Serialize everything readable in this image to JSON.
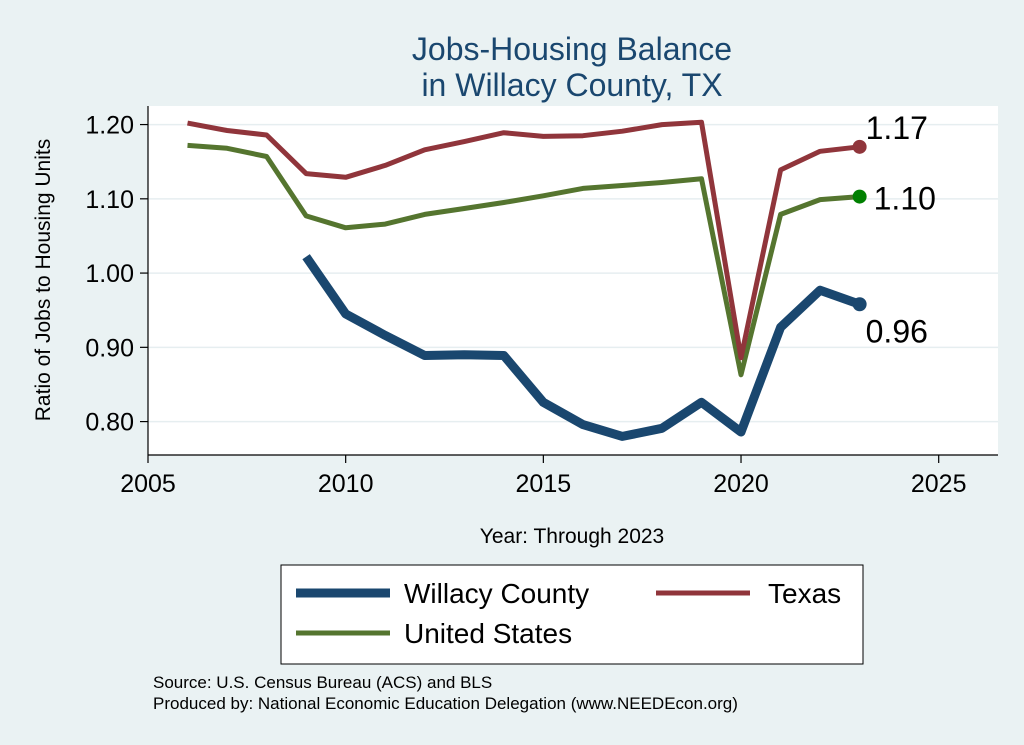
{
  "chart_data": {
    "type": "line",
    "title": [
      "Jobs-Housing Balance",
      "in Willacy County, TX"
    ],
    "xlabel": "Year: Through 2023",
    "ylabel": "Ratio of Jobs to Housing Units",
    "xlim": [
      2005,
      2026.5
    ],
    "ylim": [
      0.755,
      1.225
    ],
    "xticks": [
      2005,
      2010,
      2015,
      2020,
      2025
    ],
    "yticks": [
      0.8,
      0.9,
      1.0,
      1.1,
      1.2
    ],
    "ytick_labels": [
      "0.80",
      "0.90",
      "1.00",
      "1.10",
      "1.20"
    ],
    "grid": true,
    "series": [
      {
        "name": "Willacy County",
        "color": "#1a476f",
        "x": [
          2009,
          2010,
          2011,
          2012,
          2013,
          2014,
          2015,
          2016,
          2017,
          2018,
          2019,
          2020,
          2021,
          2022,
          2023
        ],
        "values": [
          1.022,
          0.945,
          0.916,
          0.889,
          0.89,
          0.889,
          0.826,
          0.796,
          0.78,
          0.791,
          0.826,
          0.786,
          0.927,
          0.977,
          0.958
        ],
        "end_label": "0.96"
      },
      {
        "name": "Texas",
        "color": "#90353b",
        "x": [
          2006,
          2007,
          2008,
          2009,
          2010,
          2011,
          2012,
          2013,
          2014,
          2015,
          2016,
          2017,
          2018,
          2019,
          2020,
          2021,
          2022,
          2023
        ],
        "values": [
          1.202,
          1.192,
          1.186,
          1.134,
          1.129,
          1.145,
          1.166,
          1.177,
          1.189,
          1.184,
          1.185,
          1.191,
          1.2,
          1.203,
          0.886,
          1.139,
          1.164,
          1.17
        ],
        "end_label": "1.17"
      },
      {
        "name": "United States",
        "color": "#55752f",
        "x": [
          2006,
          2007,
          2008,
          2009,
          2010,
          2011,
          2012,
          2013,
          2014,
          2015,
          2016,
          2017,
          2018,
          2019,
          2020,
          2021,
          2022,
          2023
        ],
        "values": [
          1.172,
          1.168,
          1.157,
          1.077,
          1.061,
          1.066,
          1.079,
          1.087,
          1.095,
          1.104,
          1.114,
          1.118,
          1.122,
          1.127,
          0.863,
          1.079,
          1.099,
          1.103
        ],
        "end_label": "1.10"
      }
    ],
    "end_marker_colors": {
      "Willacy County": "#1a476f",
      "Texas": "#90353b",
      "United States": "#008000"
    },
    "legend": {
      "placement": "bottom",
      "entries": [
        "Willacy County",
        "Texas",
        "United States"
      ]
    },
    "notes": [
      "Source: U.S. Census Bureau (ACS) and BLS",
      "Produced by: National Economic Education Delegation (www.NEEDEcon.org)"
    ]
  }
}
